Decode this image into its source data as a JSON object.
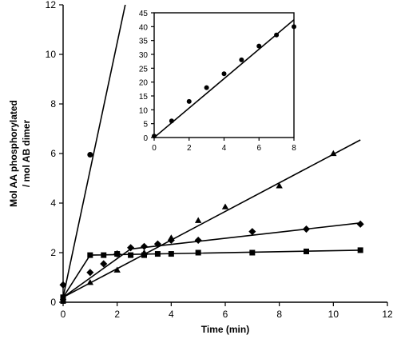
{
  "chart_data": [
    {
      "type": "scatter",
      "title": "",
      "xlabel": "Time (min)",
      "ylabel_lines": [
        "Mol AA phosphorylated",
        "/ mol AB dimer"
      ],
      "xlim": [
        0,
        12
      ],
      "ylim": [
        0,
        12
      ],
      "xticks": [
        0,
        2,
        4,
        6,
        8,
        10,
        12
      ],
      "yticks": [
        0,
        2,
        4,
        6,
        8,
        10,
        12
      ],
      "grid": false,
      "series": [
        {
          "marker": "circle",
          "points": [
            {
              "x": 0,
              "y": 0.2
            },
            {
              "x": 1,
              "y": 5.95
            }
          ],
          "fit_line": [
            {
              "x": 0,
              "y": 0.2
            },
            {
              "x": 2.3,
              "y": 12
            }
          ]
        },
        {
          "marker": "triangle",
          "points": [
            {
              "x": 0,
              "y": 0.2
            },
            {
              "x": 1,
              "y": 0.8
            },
            {
              "x": 2,
              "y": 1.3
            },
            {
              "x": 3,
              "y": 2.0
            },
            {
              "x": 4,
              "y": 2.6
            },
            {
              "x": 5,
              "y": 3.3
            },
            {
              "x": 6,
              "y": 3.85
            },
            {
              "x": 8,
              "y": 4.7
            },
            {
              "x": 10,
              "y": 6.0
            }
          ],
          "fit_line": [
            {
              "x": 0,
              "y": 0.2
            },
            {
              "x": 11,
              "y": 6.55
            }
          ]
        },
        {
          "marker": "diamond",
          "points": [
            {
              "x": 0,
              "y": 0.7
            },
            {
              "x": 1,
              "y": 1.2
            },
            {
              "x": 1.5,
              "y": 1.55
            },
            {
              "x": 2,
              "y": 1.95
            },
            {
              "x": 2.5,
              "y": 2.2
            },
            {
              "x": 3,
              "y": 2.25
            },
            {
              "x": 3.5,
              "y": 2.35
            },
            {
              "x": 4,
              "y": 2.5
            },
            {
              "x": 5,
              "y": 2.5
            },
            {
              "x": 7,
              "y": 2.85
            },
            {
              "x": 9,
              "y": 2.95
            },
            {
              "x": 11,
              "y": 3.15
            }
          ],
          "fit_line": [
            {
              "x": 0,
              "y": 0.2
            },
            {
              "x": 2.5,
              "y": 2.15
            },
            {
              "x": 11,
              "y": 3.2
            }
          ]
        },
        {
          "marker": "square",
          "points": [
            {
              "x": 0,
              "y": 0.05
            },
            {
              "x": 0,
              "y": 0.2
            },
            {
              "x": 1,
              "y": 1.9
            },
            {
              "x": 1.5,
              "y": 1.9
            },
            {
              "x": 2,
              "y": 1.95
            },
            {
              "x": 2.5,
              "y": 1.9
            },
            {
              "x": 3,
              "y": 1.9
            },
            {
              "x": 3.5,
              "y": 1.95
            },
            {
              "x": 4,
              "y": 1.95
            },
            {
              "x": 5,
              "y": 2.0
            },
            {
              "x": 7,
              "y": 2.0
            },
            {
              "x": 9,
              "y": 2.05
            },
            {
              "x": 11,
              "y": 2.1
            }
          ],
          "fit_line": [
            {
              "x": 0,
              "y": 0.2
            },
            {
              "x": 1,
              "y": 1.9
            },
            {
              "x": 11,
              "y": 2.1
            }
          ]
        }
      ]
    },
    {
      "type": "scatter",
      "title": "",
      "xlabel": "",
      "ylabel": "",
      "xlim": [
        0,
        8
      ],
      "ylim": [
        0,
        45
      ],
      "xticks": [
        0,
        2,
        4,
        6,
        8
      ],
      "yticks": [
        0,
        5,
        10,
        15,
        20,
        25,
        30,
        35,
        40,
        45
      ],
      "grid": false,
      "series": [
        {
          "marker": "circle",
          "points": [
            {
              "x": 0,
              "y": 0.5
            },
            {
              "x": 1,
              "y": 6
            },
            {
              "x": 2,
              "y": 13
            },
            {
              "x": 3,
              "y": 18
            },
            {
              "x": 4,
              "y": 23
            },
            {
              "x": 5,
              "y": 28
            },
            {
              "x": 6,
              "y": 33
            },
            {
              "x": 7,
              "y": 37
            },
            {
              "x": 8,
              "y": 40
            }
          ],
          "fit_line": [
            {
              "x": 0,
              "y": 0
            },
            {
              "x": 8,
              "y": 42.5
            }
          ]
        }
      ]
    }
  ]
}
